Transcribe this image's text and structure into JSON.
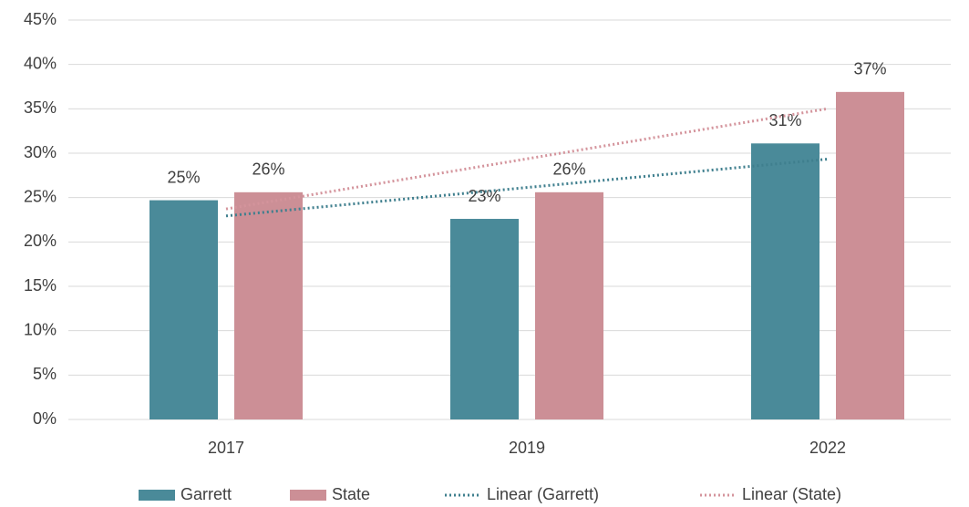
{
  "chart_data": {
    "type": "bar",
    "categories": [
      "2017",
      "2019",
      "2022"
    ],
    "series": [
      {
        "name": "Garrett",
        "color": "#4a8a99",
        "values": [
          24.7,
          22.6,
          31.1
        ],
        "value_labels": [
          "25%",
          "23%",
          "31%"
        ],
        "trendline": {
          "name": "Linear (Garrett)",
          "color": "#3f7f8e"
        }
      },
      {
        "name": "State",
        "color": "#cc8f96",
        "values": [
          25.6,
          25.6,
          36.9
        ],
        "value_labels": [
          "26%",
          "26%",
          "37%"
        ],
        "trendline": {
          "name": "Linear (State)",
          "color": "#d4949c"
        }
      }
    ],
    "ylim": [
      0,
      45
    ],
    "yticks": [
      {
        "value": 0,
        "label": "0%"
      },
      {
        "value": 5,
        "label": "5%"
      },
      {
        "value": 10,
        "label": "10%"
      },
      {
        "value": 15,
        "label": "15%"
      },
      {
        "value": 20,
        "label": "20%"
      },
      {
        "value": 25,
        "label": "25%"
      },
      {
        "value": 30,
        "label": "30%"
      },
      {
        "value": 35,
        "label": "35%"
      },
      {
        "value": 40,
        "label": "40%"
      },
      {
        "value": 45,
        "label": "45%"
      }
    ],
    "grid": true,
    "legend": "bottom"
  }
}
